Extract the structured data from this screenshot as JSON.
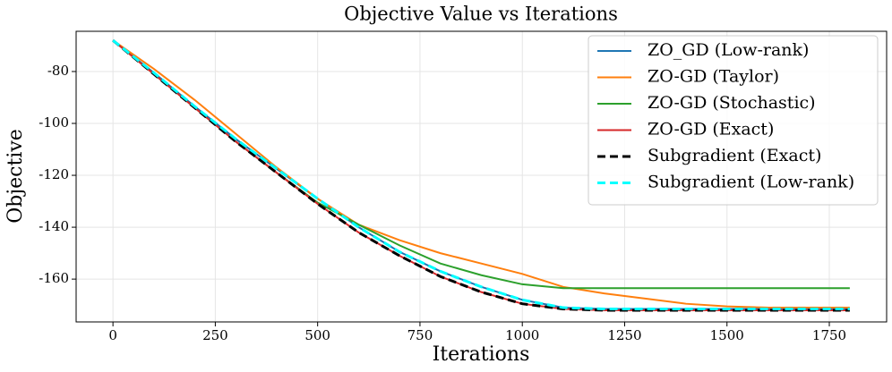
{
  "chart_data": {
    "type": "line",
    "title": "Objective Value vs Iterations",
    "x_label": "Iterations",
    "y_label": "Objective",
    "x": [
      0,
      100,
      200,
      300,
      400,
      500,
      600,
      700,
      800,
      900,
      1000,
      1100,
      1200,
      1300,
      1400,
      1500,
      1600,
      1700,
      1800
    ],
    "series": [
      {
        "name": "ZO_GD (Low-rank)",
        "color": "#1f77b4",
        "linestyle": "solid",
        "values": [
          -68,
          -80.5,
          -93.5,
          -106,
          -117.5,
          -129,
          -140,
          -149.5,
          -157,
          -163,
          -168,
          -171,
          -171.5,
          -171.5,
          -171.5,
          -171.5,
          -171.5,
          -171.5,
          -171.5
        ]
      },
      {
        "name": "ZO-GD (Taylor)",
        "color": "#ff7f0e",
        "linestyle": "solid",
        "values": [
          -68,
          -79,
          -91,
          -104,
          -117,
          -129,
          -139,
          -145,
          -150,
          -154,
          -158,
          -163,
          -165.5,
          -167.5,
          -169.5,
          -170.5,
          -171,
          -171,
          -171
        ]
      },
      {
        "name": "ZO-GD (Stochastic)",
        "color": "#2ca02c",
        "linestyle": "solid",
        "values": [
          -68,
          -81,
          -94,
          -107,
          -119,
          -130.5,
          -139,
          -147,
          -154,
          -158.5,
          -162,
          -163.5,
          -163.5,
          -163.5,
          -163.5,
          -163.5,
          -163.5,
          -163.5,
          -163.5
        ]
      },
      {
        "name": "ZO-GD (Exact)",
        "color": "#d62728",
        "linestyle": "solid",
        "values": [
          -68,
          -81,
          -94,
          -107,
          -119,
          -131,
          -142,
          -151,
          -159,
          -165,
          -169.5,
          -171.5,
          -172,
          -172,
          -172,
          -172,
          -172,
          -172,
          -172
        ]
      },
      {
        "name": "Subgradient (Exact)",
        "color": "#000000",
        "linestyle": "dashed",
        "values": [
          -68,
          -81,
          -94,
          -107,
          -119,
          -131,
          -142,
          -151,
          -159,
          -165,
          -169.5,
          -171.5,
          -172,
          -172,
          -172,
          -172,
          -172,
          -172,
          -172
        ]
      },
      {
        "name": "Subgradient (Low-rank)",
        "color": "#00ffff",
        "linestyle": "dashed",
        "values": [
          -68,
          -80.5,
          -93.5,
          -106,
          -117.5,
          -129,
          -140,
          -149.5,
          -157,
          -163,
          -168,
          -171,
          -171.5,
          -171.5,
          -171.5,
          -171.5,
          -171.5,
          -171.5,
          -171.5
        ]
      }
    ],
    "xlim": [
      -90,
      1890
    ],
    "ylim": [
      -176.5,
      -64.5
    ],
    "xticks": [
      0,
      250,
      500,
      750,
      1000,
      1250,
      1500,
      1750
    ],
    "yticks": [
      -80,
      -100,
      -120,
      -140,
      -160
    ],
    "grid": true,
    "legend": "upper right"
  }
}
